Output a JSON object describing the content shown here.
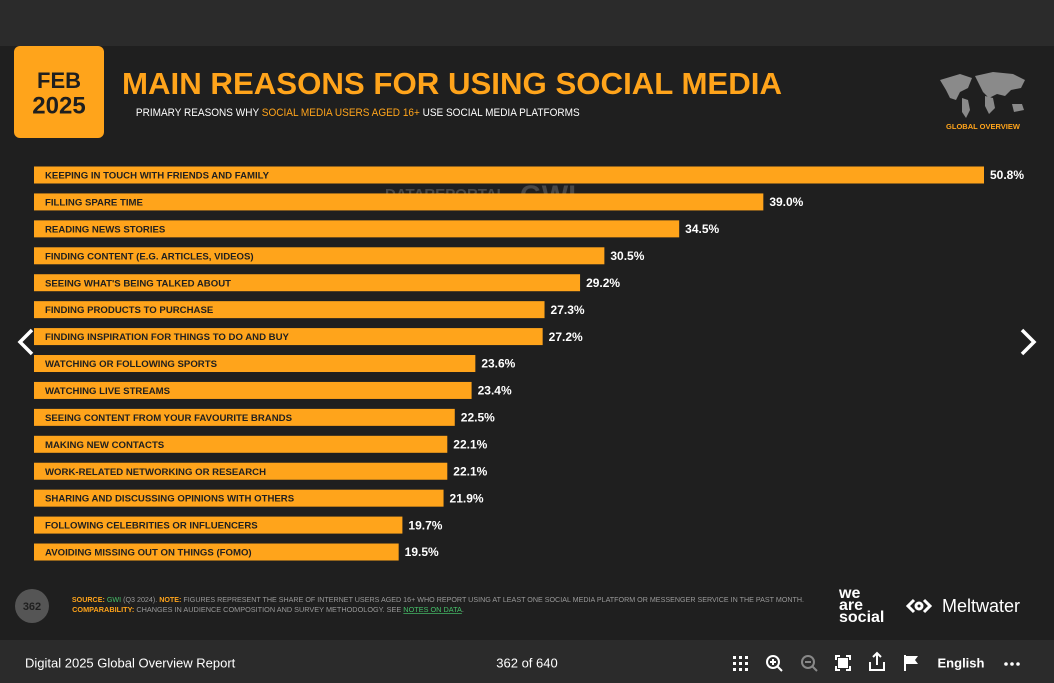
{
  "header": {
    "month": "FEB",
    "year": "2025",
    "title": "MAIN REASONS FOR USING SOCIAL MEDIA",
    "subtitle": [
      "PRIMARY REASONS WHY ",
      "SOCIAL MEDIA USERS AGED 16+",
      " USE SOCIAL MEDIA PLATFORMS"
    ],
    "badge": "GLOBAL OVERVIEW"
  },
  "watermark": [
    "DATAREPORTAL",
    "GWI."
  ],
  "chart_data": {
    "type": "bar",
    "orientation": "horizontal",
    "color": "#ffa41b",
    "categories": [
      "KEEPING IN TOUCH WITH FRIENDS AND FAMILY",
      "FILLING SPARE TIME",
      "READING NEWS STORIES",
      "FINDING CONTENT (E.G. ARTICLES, VIDEOS)",
      "SEEING WHAT'S BEING TALKED ABOUT",
      "FINDING PRODUCTS TO PURCHASE",
      "FINDING INSPIRATION FOR THINGS TO DO AND BUY",
      "WATCHING OR FOLLOWING SPORTS",
      "WATCHING LIVE STREAMS",
      "SEEING CONTENT FROM YOUR FAVOURITE BRANDS",
      "MAKING NEW CONTACTS",
      "WORK-RELATED NETWORKING OR RESEARCH",
      "SHARING AND DISCUSSING OPINIONS WITH OTHERS",
      "FOLLOWING CELEBRITIES OR INFLUENCERS",
      "AVOIDING MISSING OUT ON THINGS (FOMO)"
    ],
    "values": [
      50.8,
      39.0,
      34.5,
      30.5,
      29.2,
      27.3,
      27.2,
      23.6,
      23.4,
      22.5,
      22.1,
      22.1,
      21.9,
      19.7,
      19.5
    ],
    "value_labels": [
      "50.8%",
      "39.0%",
      "34.5%",
      "30.5%",
      "29.2%",
      "27.3%",
      "27.2%",
      "23.6%",
      "23.4%",
      "22.5%",
      "22.1%",
      "22.1%",
      "21.9%",
      "19.7%",
      "19.5%"
    ]
  },
  "footer": {
    "page_badge": "362",
    "source": [
      "SOURCE: ",
      "GWI",
      " (Q3 2024). ",
      "NOTE: ",
      "FIGURES REPRESENT THE SHARE OF INTERNET USERS AGED 16+ WHO REPORT USING AT LEAST ONE SOCIAL MEDIA PLATFORM OR MESSENGER SERVICE IN THE PAST MONTH."
    ],
    "comparability": [
      "COMPARABILITY: ",
      "CHANGES IN AUDIENCE COMPOSITION AND SURVEY METHODOLOGY. SEE ",
      "NOTES ON DATA",
      "."
    ],
    "logo_we_are_social": [
      "we",
      "are",
      "social"
    ],
    "logo_meltwater": "Meltwater"
  },
  "toolbar": {
    "report": "Digital 2025 Global Overview Report",
    "page": "362 of 640",
    "language": "English"
  }
}
